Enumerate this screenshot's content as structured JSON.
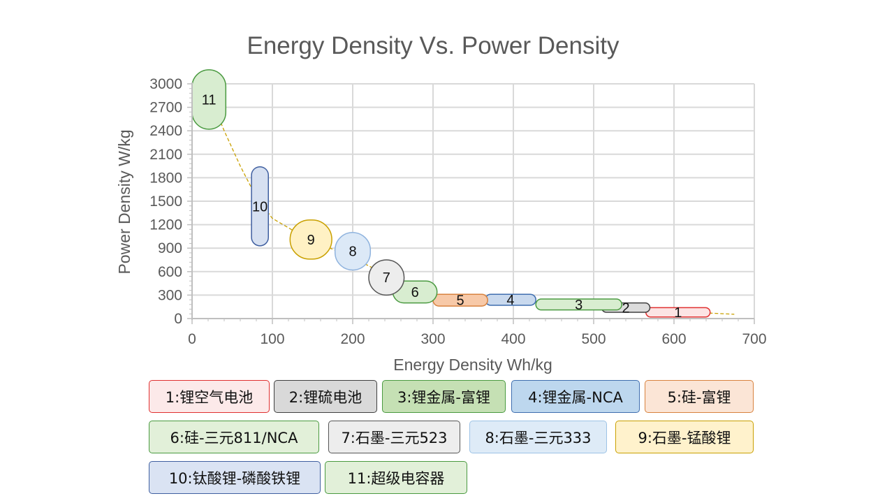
{
  "chart_data": {
    "type": "scatter",
    "title": "Energy Density Vs. Power Density",
    "xlabel": "Energy Density Wh/kg",
    "ylabel": "Power Density W/kg",
    "xlim": [
      0,
      700
    ],
    "ylim": [
      0,
      3000
    ],
    "x_ticks": [
      "0",
      "100",
      "200",
      "300",
      "400",
      "500",
      "600",
      "700"
    ],
    "y_ticks": [
      "0",
      "300",
      "600",
      "900",
      "1200",
      "1500",
      "1800",
      "2100",
      "2400",
      "2700",
      "3000"
    ],
    "grid": true,
    "trend_line": {
      "style": "dashed",
      "color": "#C9A000",
      "points": [
        [
          20,
          2900
        ],
        [
          40,
          2400
        ],
        [
          60,
          1950
        ],
        [
          80,
          1550
        ],
        [
          100,
          1280
        ],
        [
          130,
          1100
        ],
        [
          160,
          950
        ],
        [
          200,
          780
        ],
        [
          230,
          620
        ],
        [
          260,
          440
        ],
        [
          300,
          300
        ],
        [
          360,
          260
        ],
        [
          400,
          230
        ],
        [
          450,
          180
        ],
        [
          500,
          150
        ],
        [
          550,
          120
        ],
        [
          600,
          90
        ],
        [
          675,
          55
        ]
      ]
    },
    "series": [
      {
        "id": "1",
        "name": "锂空气电池",
        "x_range": [
          565,
          645
        ],
        "y_range": [
          20,
          140
        ],
        "fill": "#FCE4E4",
        "stroke": "#E03030"
      },
      {
        "id": "2",
        "name": "锂硫电池",
        "x_range": [
          510,
          570
        ],
        "y_range": [
          80,
          200
        ],
        "fill": "#DCDCDC",
        "stroke": "#404040"
      },
      {
        "id": "3",
        "name": "锂金属-富锂",
        "x_range": [
          428,
          535
        ],
        "y_range": [
          110,
          250
        ],
        "fill": "#D8EDD0",
        "stroke": "#4A9A40"
      },
      {
        "id": "4",
        "name": "锂金属-NCA",
        "x_range": [
          365,
          428
        ],
        "y_range": [
          170,
          310
        ],
        "fill": "#C9D9EE",
        "stroke": "#3F6EAF"
      },
      {
        "id": "5",
        "name": "硅-富锂",
        "x_range": [
          300,
          368
        ],
        "y_range": [
          160,
          310
        ],
        "fill": "#F7C9A8",
        "stroke": "#D8823E"
      },
      {
        "id": "6",
        "name": "硅-三元811/NCA",
        "x_range": [
          250,
          305
        ],
        "y_range": [
          200,
          480
        ],
        "fill": "#D8EDD0",
        "stroke": "#4A9A40"
      },
      {
        "id": "7",
        "name": "石墨-三元523",
        "x_range": [
          220,
          264
        ],
        "y_range": [
          300,
          750
        ],
        "fill": "#EDEDED",
        "stroke": "#555555"
      },
      {
        "id": "8",
        "name": "石墨-三元333",
        "x_range": [
          178,
          222
        ],
        "y_range": [
          620,
          1100
        ],
        "fill": "#DCE9F7",
        "stroke": "#8FB3DE"
      },
      {
        "id": "9",
        "name": "石墨-锰酸锂",
        "x_range": [
          122,
          174
        ],
        "y_range": [
          760,
          1260
        ],
        "fill": "#FFF1C4",
        "stroke": "#C9A000"
      },
      {
        "id": "10",
        "name": "钛酸锂-磷酸铁锂",
        "x_range": [
          74,
          95
        ],
        "y_range": [
          930,
          1940
        ],
        "fill": "#D6E0F1",
        "stroke": "#3F5FA0"
      },
      {
        "id": "11",
        "name": "超级电容器",
        "x_range": [
          0,
          42
        ],
        "y_range": [
          2420,
          3180
        ],
        "fill": "#D8EDD0",
        "stroke": "#4A9A40"
      }
    ]
  },
  "legend": [
    {
      "text": "1:锂空气电池",
      "fill": "#FCE9E9",
      "stroke": "#E03030"
    },
    {
      "text": "2:锂硫电池",
      "fill": "#D9D9D9",
      "stroke": "#404040"
    },
    {
      "text": "3:锂金属-富锂",
      "fill": "#C5E0B4",
      "stroke": "#4A9A40"
    },
    {
      "text": "4:锂金属-NCA",
      "fill": "#BDD7EE",
      "stroke": "#3F6EAF"
    },
    {
      "text": "5:硅-富锂",
      "fill": "#FBE5D6",
      "stroke": "#D8823E"
    },
    {
      "text": "6:硅-三元811/NCA",
      "fill": "#E2F0D9",
      "stroke": "#4A9A40"
    },
    {
      "text": "7:石墨-三元523",
      "fill": "#EDEDED",
      "stroke": "#555555"
    },
    {
      "text": "8:石墨-三元333",
      "fill": "#DEEBF7",
      "stroke": "#9DC3E6"
    },
    {
      "text": "9:石墨-锰酸锂",
      "fill": "#FFF2CC",
      "stroke": "#C9A000"
    },
    {
      "text": "10:钛酸锂-磷酸铁锂",
      "fill": "#DAE3F3",
      "stroke": "#3F5FA0"
    },
    {
      "text": "11:超级电容器",
      "fill": "#E2F0D9",
      "stroke": "#4A9A40"
    }
  ]
}
